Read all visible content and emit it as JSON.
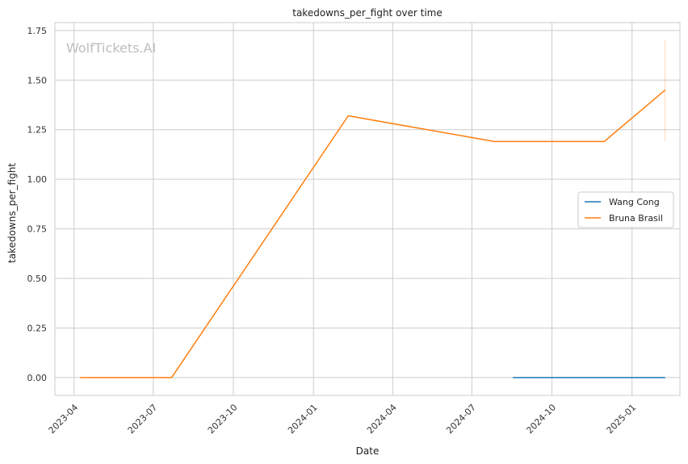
{
  "chart_data": {
    "type": "line",
    "title": "takedowns_per_fight over time",
    "xlabel": "Date",
    "ylabel": "takedowns_per_fight",
    "watermark": "WolfTickets.AI",
    "x_axis": "date",
    "xlim": [
      "2023-03-10",
      "2025-02-25"
    ],
    "ylim": [
      -0.09,
      1.79
    ],
    "x_ticks": [
      "2023-04-01",
      "2023-07-01",
      "2023-10-01",
      "2024-01-01",
      "2024-04-01",
      "2024-07-01",
      "2024-10-01",
      "2025-01-01"
    ],
    "x_tick_labels": [
      "2023-04",
      "2023-07",
      "2023-10",
      "2024-01",
      "2024-04",
      "2024-07",
      "2024-10",
      "2025-01"
    ],
    "y_ticks": [
      0.0,
      0.25,
      0.5,
      0.75,
      1.0,
      1.25,
      1.5,
      1.75
    ],
    "y_tick_labels": [
      "0.00",
      "0.25",
      "0.50",
      "0.75",
      "1.00",
      "1.25",
      "1.50",
      "1.75"
    ],
    "grid": true,
    "legend_position": "center-right",
    "series": [
      {
        "name": "Wang Cong",
        "color": "#1f77b4",
        "points": [
          {
            "x": "2024-08-17",
            "y": 0.0
          },
          {
            "x": "2025-02-08",
            "y": 0.0
          }
        ]
      },
      {
        "name": "Bruna Brasil",
        "color": "#ff7f0e",
        "points": [
          {
            "x": "2023-04-08",
            "y": 0.0
          },
          {
            "x": "2023-07-22",
            "y": 0.0
          },
          {
            "x": "2024-02-10",
            "y": 1.32
          },
          {
            "x": "2024-07-27",
            "y": 1.19
          },
          {
            "x": "2024-11-30",
            "y": 1.19
          },
          {
            "x": "2025-02-08",
            "y": 1.45
          }
        ],
        "error_bars": [
          {
            "x": "2025-02-08",
            "low": 1.19,
            "high": 1.7
          }
        ]
      }
    ]
  }
}
